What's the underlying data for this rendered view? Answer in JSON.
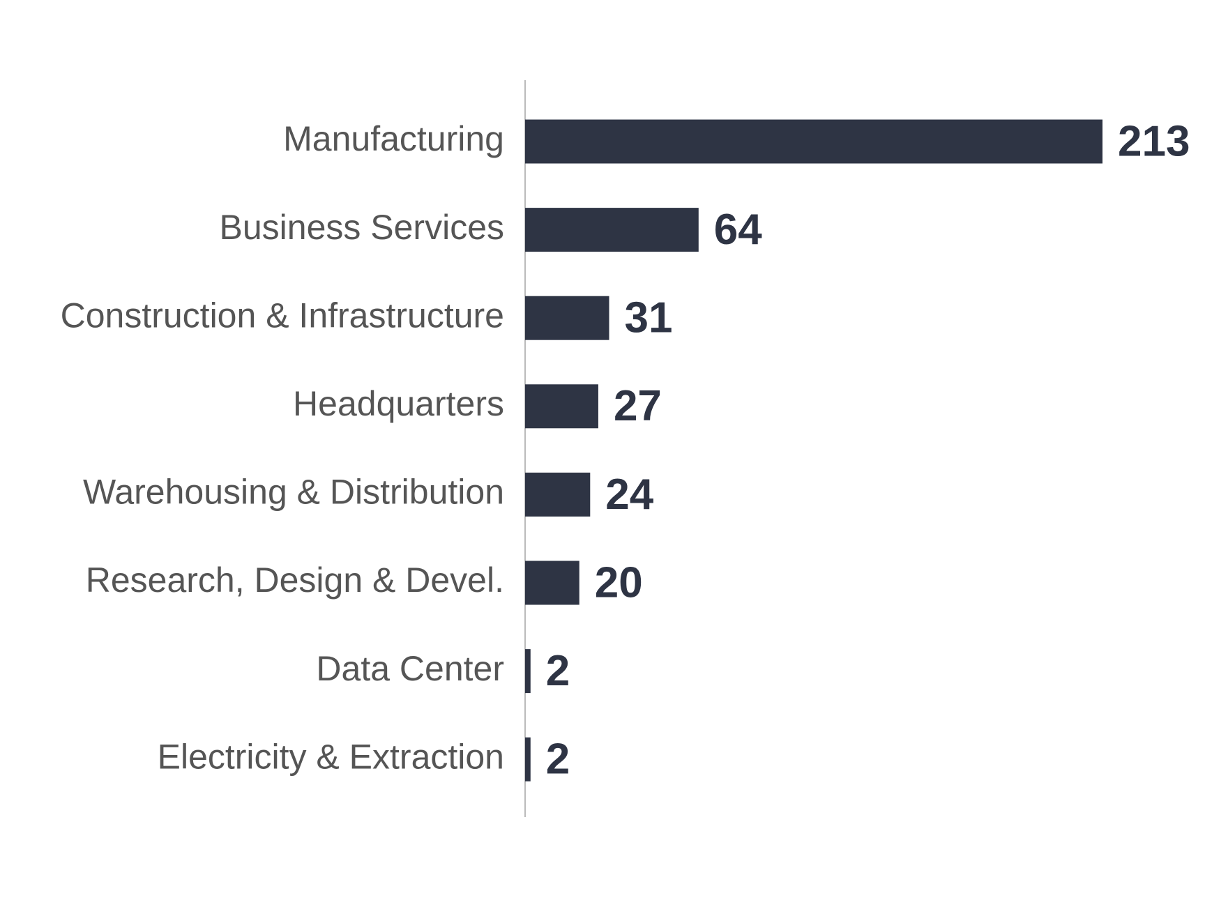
{
  "chart_data": {
    "type": "bar",
    "orientation": "horizontal",
    "categories": [
      "Manufacturing",
      "Business Services",
      "Construction & Infrastructure",
      "Headquarters",
      "Warehousing & Distribution",
      "Research, Design & Devel.",
      "Data Center",
      "Electricity & Extraction"
    ],
    "values": [
      213,
      64,
      31,
      27,
      24,
      20,
      2,
      2
    ],
    "color": "#2e3444"
  }
}
